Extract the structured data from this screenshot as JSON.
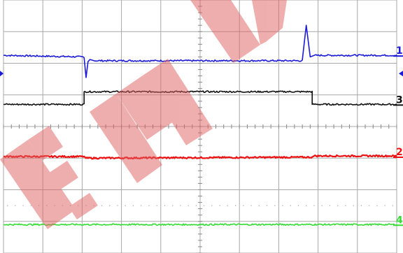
{
  "chart_data": {
    "type": "line",
    "title": "",
    "xlabel": "",
    "ylabel": "",
    "grid": true,
    "grid_divisions": {
      "x": 10,
      "y": 8
    },
    "x_range": [
      0,
      10
    ],
    "y_range": [
      -4,
      4
    ],
    "series": [
      {
        "name": "1",
        "color": "#1a1ad8",
        "x": [
          0,
          2.05,
          2.1,
          2.15,
          2.2,
          2.3,
          7.6,
          7.7,
          7.8,
          7.9,
          10
        ],
        "y": [
          2.25,
          2.2,
          1.55,
          2.05,
          2.12,
          2.08,
          2.08,
          3.2,
          2.2,
          2.25,
          2.25
        ]
      },
      {
        "name": "3",
        "color": "#111111",
        "x": [
          0,
          2.05,
          2.05,
          7.85,
          7.85,
          10
        ],
        "y": [
          0.7,
          0.7,
          1.1,
          1.1,
          0.7,
          0.7
        ]
      },
      {
        "name": "2",
        "color": "#ee1111",
        "x": [
          0,
          2.05,
          2.1,
          7.85,
          7.9,
          10
        ],
        "y": [
          -0.95,
          -0.95,
          -1.0,
          -0.97,
          -0.93,
          -0.93
        ]
      },
      {
        "name": "4",
        "color": "#33dd33",
        "x": [
          0,
          10
        ],
        "y": [
          -3.1,
          -3.1
        ]
      }
    ],
    "channel_markers": [
      {
        "label": "1",
        "color": "#1a1ad8",
        "y": 2.25
      },
      {
        "label": "3",
        "color": "#111111",
        "y": 0.7
      },
      {
        "label": "2",
        "color": "#ee1111",
        "y": -0.95
      },
      {
        "label": "4",
        "color": "#33dd33",
        "y": -3.1
      }
    ]
  },
  "watermark": {
    "text": "END",
    "color": "#e06060"
  }
}
